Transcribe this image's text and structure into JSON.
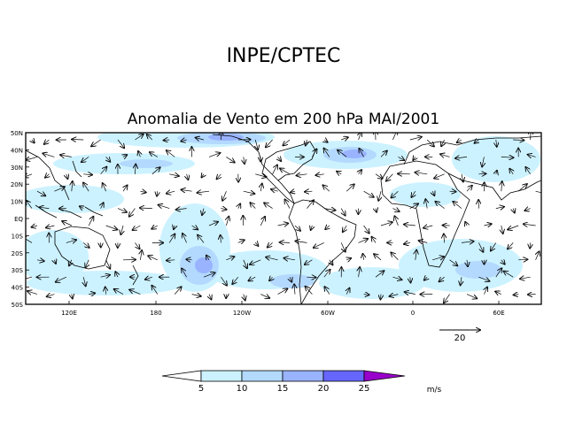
{
  "header": {
    "title": "INPE/CPTEC"
  },
  "map": {
    "title": "Anomalia de Vento em 200 hPa MAI/2001",
    "lat_labels": [
      "50N",
      "40N",
      "30N",
      "20N",
      "10N",
      "EQ",
      "10S",
      "20S",
      "30S",
      "40S",
      "50S"
    ],
    "lon_labels": [
      "120E",
      "180",
      "120W",
      "60W",
      "0",
      "60E"
    ]
  },
  "reference_vector": {
    "label": "20"
  },
  "colorbar": {
    "tick_labels": [
      "5",
      "10",
      "15",
      "20",
      "25"
    ],
    "unit": "m/s",
    "colors": [
      "#ffffff",
      "#ccf2ff",
      "#b3d9ff",
      "#99b3ff",
      "#6666ff",
      "#4d33e6",
      "#9900cc"
    ]
  }
}
